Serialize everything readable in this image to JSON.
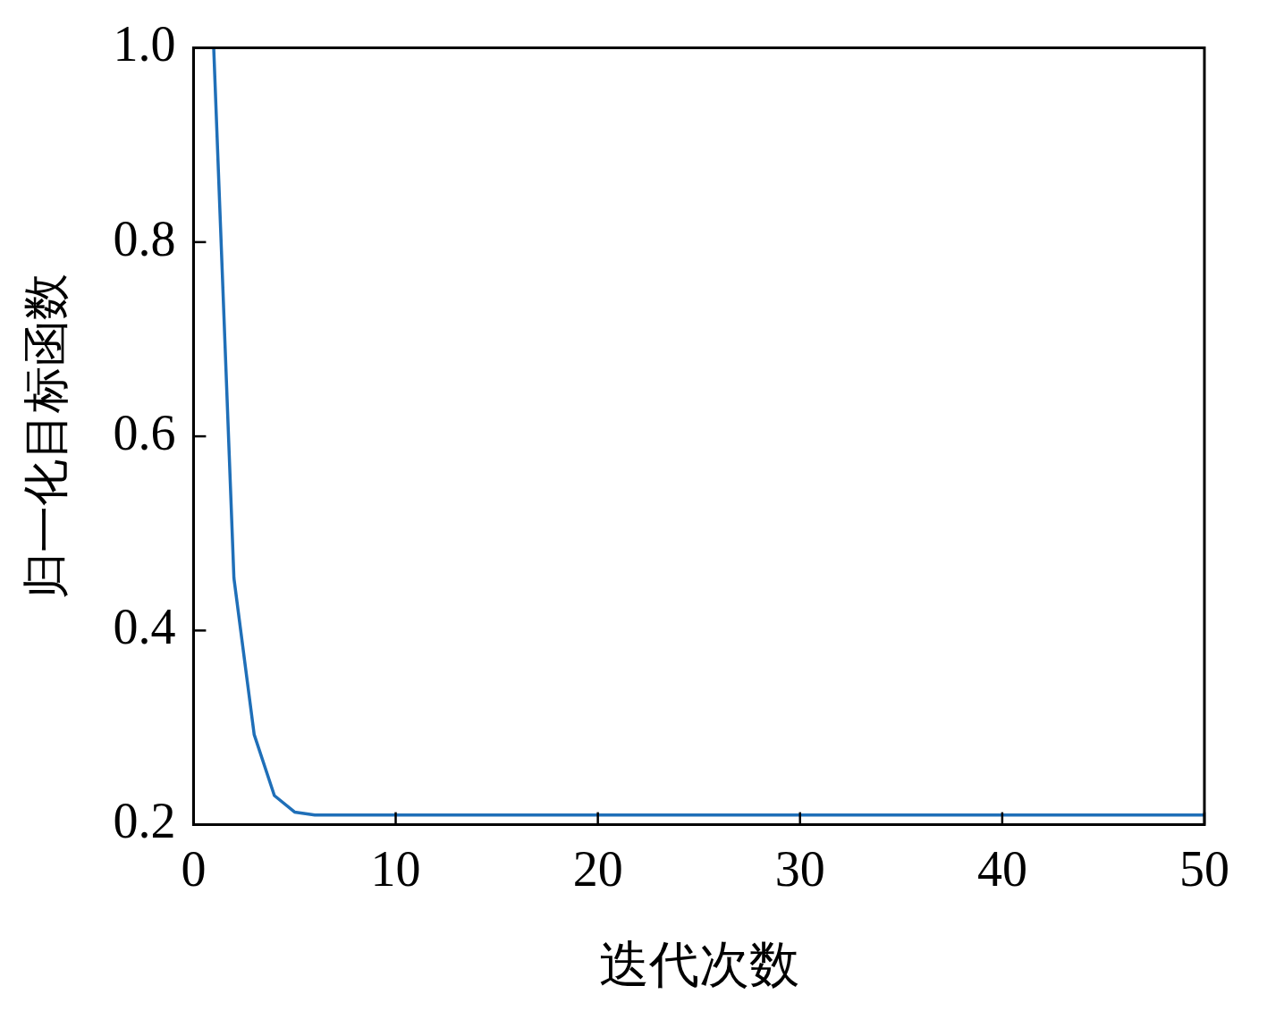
{
  "chart_data": {
    "type": "line",
    "xlabel": "迭代次数",
    "ylabel": "归一化目标函数",
    "x": [
      1,
      2,
      3,
      4,
      5,
      6,
      10,
      20,
      30,
      40,
      50
    ],
    "series": [
      {
        "color": "#1f6fb8",
        "values": [
          1.0,
          0.454,
          0.293,
          0.23,
          0.213,
          0.21,
          0.21,
          0.21,
          0.21,
          0.21,
          0.21
        ]
      }
    ],
    "xlim": [
      0,
      50
    ],
    "xticks": [
      0,
      10,
      20,
      30,
      40,
      50
    ],
    "ylim": [
      0.2,
      1.0
    ],
    "yticks": [
      {
        "value": 0.2,
        "label": "0.2"
      },
      {
        "value": 0.4,
        "label": "0.4"
      },
      {
        "value": 0.6,
        "label": "0.6"
      },
      {
        "value": 0.8,
        "label": "0.8"
      },
      {
        "value": 1.0,
        "label": "1.0"
      }
    ],
    "grid": false,
    "legend": false,
    "marker": "none",
    "line_style": "solid"
  }
}
